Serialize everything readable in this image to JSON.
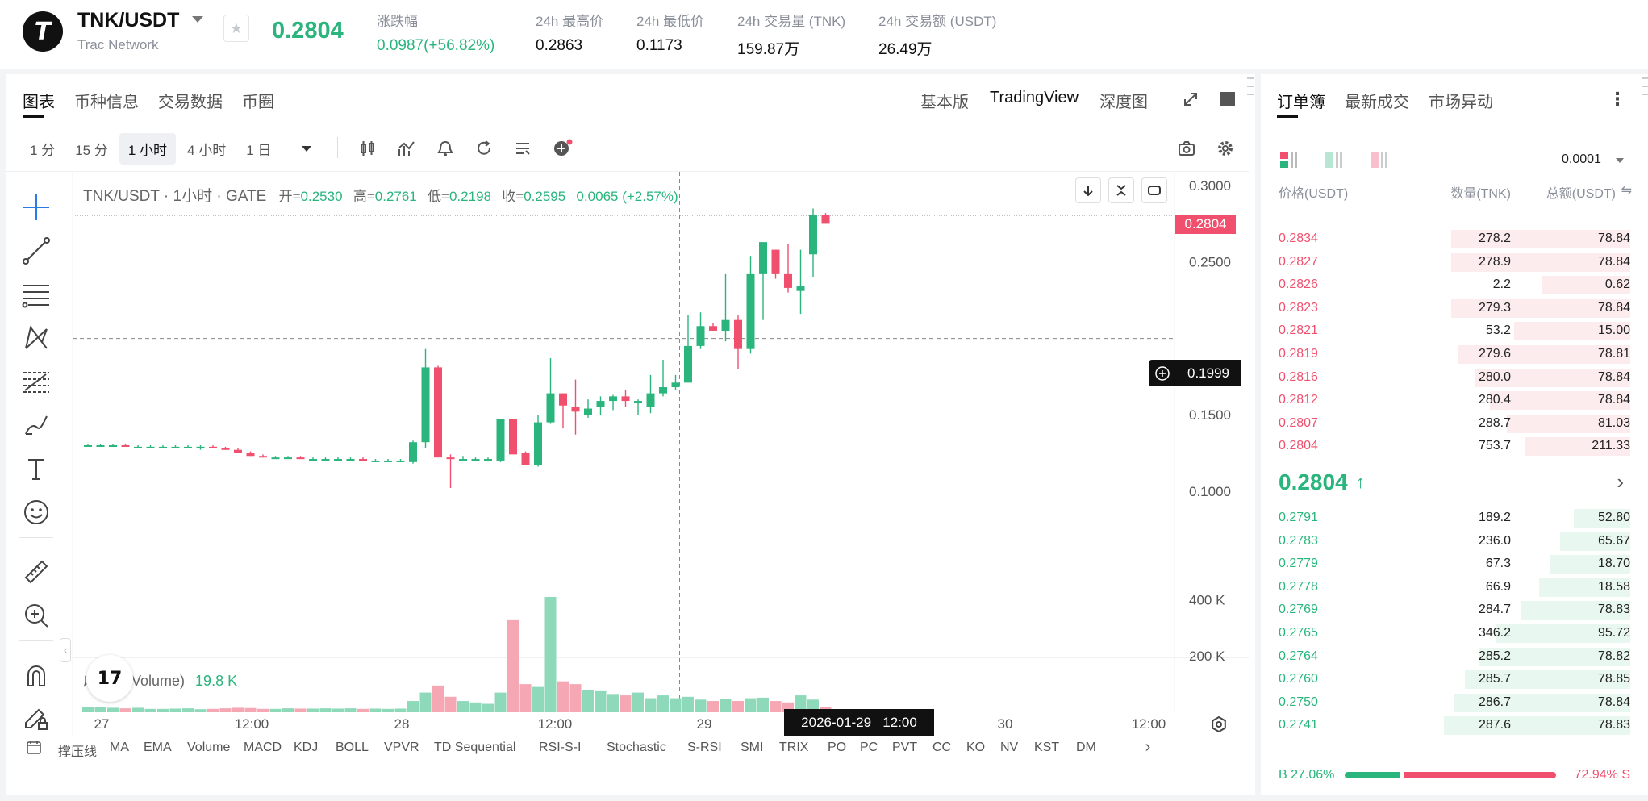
{
  "header": {
    "logo_glyph": "T",
    "pair": "TNK/USDT",
    "network": "Trac Network",
    "last_price": "0.2804",
    "stats": [
      {
        "label": "涨跌幅",
        "value": "0.0987(+56.82%)",
        "color": "#2ab57d"
      },
      {
        "label": "24h 最高价",
        "value": "0.2863",
        "color": "#111111"
      },
      {
        "label": "24h 最低价",
        "value": "0.1173",
        "color": "#111111"
      },
      {
        "label": "24h 交易量 (TNK)",
        "value": "159.87万",
        "color": "#111111"
      },
      {
        "label": "24h 交易额 (USDT)",
        "value": "26.49万",
        "color": "#111111"
      }
    ]
  },
  "chart_tabs": [
    "图表",
    "币种信息",
    "交易数据",
    "币圈"
  ],
  "chart_views": [
    "基本版",
    "TradingView",
    "深度图"
  ],
  "timeframes": [
    {
      "label": "1 分",
      "active": false
    },
    {
      "label": "15 分",
      "active": false
    },
    {
      "label": "1 小时",
      "active": true
    },
    {
      "label": "4 小时",
      "active": false
    },
    {
      "label": "1 日",
      "active": false
    }
  ],
  "legend": {
    "title": "TNK/USDT · 1小时 · GATE",
    "open_label": "开=",
    "open": "0.2530",
    "high_label": "高=",
    "high": "0.2761",
    "low_label": "低=",
    "low": "0.2198",
    "close_label": "收=",
    "close": "0.2595",
    "change": "0.0065 (+2.57%)"
  },
  "volume": {
    "label": "成交量(Volume)",
    "value": "19.8 K",
    "ticks": [
      "400 K",
      "200 K"
    ]
  },
  "price_axis": {
    "ticks": [
      "0.3000",
      "0.2500",
      "0.1500",
      "0.1000"
    ],
    "last_tag": "0.2804",
    "cursor_tag": "0.1999"
  },
  "time_axis": {
    "labels": [
      "27",
      "12:00",
      "28",
      "12:00",
      "29",
      "30",
      "12:00"
    ],
    "cursor_label": "2026-01-29   12:00"
  },
  "indicators": [
    "撑压线",
    "MA",
    "EMA",
    "Volume",
    "MACD",
    "KDJ",
    "BOLL",
    "VPVR",
    "TD Sequential",
    "RSI-S-I",
    "Stochastic",
    "S-RSI",
    "SMI",
    "TRIX",
    "PO",
    "PC",
    "PVT",
    "CC",
    "KO",
    "NV",
    "KST",
    "DM"
  ],
  "chart_data": {
    "type": "candlestick",
    "y_range": [
      0.083,
      0.309
    ],
    "candles_ohlc": [
      [
        0.13,
        0.131,
        0.129,
        0.13
      ],
      [
        0.13,
        0.131,
        0.129,
        0.13
      ],
      [
        0.13,
        0.131,
        0.129,
        0.13
      ],
      [
        0.13,
        0.131,
        0.129,
        0.129
      ],
      [
        0.129,
        0.13,
        0.128,
        0.129
      ],
      [
        0.129,
        0.13,
        0.128,
        0.129
      ],
      [
        0.129,
        0.13,
        0.128,
        0.129
      ],
      [
        0.129,
        0.13,
        0.128,
        0.129
      ],
      [
        0.129,
        0.13,
        0.128,
        0.129
      ],
      [
        0.128,
        0.13,
        0.127,
        0.129
      ],
      [
        0.129,
        0.13,
        0.128,
        0.128
      ],
      [
        0.128,
        0.129,
        0.127,
        0.127
      ],
      [
        0.127,
        0.128,
        0.125,
        0.125
      ],
      [
        0.125,
        0.126,
        0.123,
        0.123
      ],
      [
        0.123,
        0.124,
        0.122,
        0.122
      ],
      [
        0.122,
        0.123,
        0.121,
        0.122
      ],
      [
        0.122,
        0.123,
        0.121,
        0.122
      ],
      [
        0.122,
        0.123,
        0.121,
        0.121
      ],
      [
        0.121,
        0.122,
        0.121,
        0.121
      ],
      [
        0.121,
        0.122,
        0.12,
        0.121
      ],
      [
        0.121,
        0.122,
        0.12,
        0.121
      ],
      [
        0.121,
        0.122,
        0.12,
        0.121
      ],
      [
        0.121,
        0.122,
        0.12,
        0.12
      ],
      [
        0.12,
        0.121,
        0.119,
        0.12
      ],
      [
        0.12,
        0.121,
        0.119,
        0.12
      ],
      [
        0.12,
        0.121,
        0.119,
        0.12
      ],
      [
        0.119,
        0.133,
        0.118,
        0.132
      ],
      [
        0.132,
        0.193,
        0.128,
        0.181
      ],
      [
        0.181,
        0.182,
        0.122,
        0.122
      ],
      [
        0.122,
        0.124,
        0.102,
        0.121
      ],
      [
        0.121,
        0.123,
        0.12,
        0.121
      ],
      [
        0.121,
        0.122,
        0.12,
        0.121
      ],
      [
        0.121,
        0.122,
        0.12,
        0.121
      ],
      [
        0.12,
        0.135,
        0.119,
        0.147
      ],
      [
        0.147,
        0.147,
        0.125,
        0.124
      ],
      [
        0.125,
        0.126,
        0.117,
        0.117
      ],
      [
        0.117,
        0.15,
        0.116,
        0.145
      ],
      [
        0.145,
        0.187,
        0.144,
        0.164
      ],
      [
        0.164,
        0.164,
        0.141,
        0.156
      ],
      [
        0.155,
        0.173,
        0.137,
        0.152
      ],
      [
        0.15,
        0.16,
        0.148,
        0.154
      ],
      [
        0.155,
        0.162,
        0.15,
        0.159
      ],
      [
        0.159,
        0.163,
        0.153,
        0.162
      ],
      [
        0.162,
        0.166,
        0.155,
        0.159
      ],
      [
        0.159,
        0.16,
        0.15,
        0.159
      ],
      [
        0.155,
        0.176,
        0.151,
        0.164
      ],
      [
        0.164,
        0.186,
        0.162,
        0.168
      ],
      [
        0.168,
        0.176,
        0.166,
        0.171
      ],
      [
        0.171,
        0.215,
        0.171,
        0.195
      ],
      [
        0.195,
        0.217,
        0.193,
        0.208
      ],
      [
        0.208,
        0.21,
        0.205,
        0.205
      ],
      [
        0.205,
        0.242,
        0.198,
        0.212
      ],
      [
        0.212,
        0.215,
        0.18,
        0.193
      ],
      [
        0.193,
        0.254,
        0.19,
        0.242
      ],
      [
        0.242,
        0.26,
        0.212,
        0.263
      ],
      [
        0.258,
        0.258,
        0.239,
        0.242
      ],
      [
        0.242,
        0.262,
        0.23,
        0.233
      ],
      [
        0.231,
        0.258,
        0.216,
        0.234
      ],
      [
        0.255,
        0.285,
        0.24,
        0.281
      ],
      [
        0.281,
        0.282,
        0.275,
        0.275
      ]
    ],
    "volume_k": [
      20,
      18,
      16,
      14,
      16,
      12,
      12,
      13,
      14,
      11,
      12,
      14,
      16,
      15,
      12,
      12,
      14,
      13,
      13,
      14,
      13,
      14,
      12,
      13,
      12,
      13,
      40,
      70,
      95,
      55,
      40,
      35,
      30,
      70,
      330,
      100,
      90,
      410,
      110,
      100,
      80,
      75,
      65,
      60,
      70,
      50,
      60,
      50,
      55,
      45,
      40,
      48,
      40,
      50,
      52,
      40,
      35,
      60,
      45,
      18
    ]
  },
  "orderbook": {
    "tabs": [
      "订单簿",
      "最新成交",
      "市场异动"
    ],
    "precision": "0.0001",
    "headers": {
      "price": "价格(USDT)",
      "qty": "数量(TNK)",
      "total": "总额(USDT)"
    },
    "asks": [
      {
        "price": "0.2834",
        "qty": "278.2",
        "total": "78.84",
        "depth": 0.51
      },
      {
        "price": "0.2827",
        "qty": "278.9",
        "total": "78.84",
        "depth": 0.51
      },
      {
        "price": "0.2826",
        "qty": "2.2",
        "total": "0.62",
        "depth": 0.25
      },
      {
        "price": "0.2823",
        "qty": "279.3",
        "total": "78.84",
        "depth": 0.51
      },
      {
        "price": "0.2821",
        "qty": "53.2",
        "total": "15.00",
        "depth": 0.33
      },
      {
        "price": "0.2819",
        "qty": "279.6",
        "total": "78.81",
        "depth": 0.49
      },
      {
        "price": "0.2816",
        "qty": "280.0",
        "total": "78.84",
        "depth": 0.44
      },
      {
        "price": "0.2812",
        "qty": "280.4",
        "total": "78.84",
        "depth": 0.4
      },
      {
        "price": "0.2807",
        "qty": "288.7",
        "total": "81.03",
        "depth": 0.35
      },
      {
        "price": "0.2804",
        "qty": "753.7",
        "total": "211.33",
        "depth": 0.3
      }
    ],
    "mid_price": "0.2804",
    "bids": [
      {
        "price": "0.2791",
        "qty": "189.2",
        "total": "52.80",
        "depth": 0.16
      },
      {
        "price": "0.2783",
        "qty": "236.0",
        "total": "65.67",
        "depth": 0.2
      },
      {
        "price": "0.2779",
        "qty": "67.3",
        "total": "18.70",
        "depth": 0.23
      },
      {
        "price": "0.2778",
        "qty": "66.9",
        "total": "18.58",
        "depth": 0.26
      },
      {
        "price": "0.2769",
        "qty": "284.7",
        "total": "78.83",
        "depth": 0.31
      },
      {
        "price": "0.2765",
        "qty": "346.2",
        "total": "95.72",
        "depth": 0.38
      },
      {
        "price": "0.2764",
        "qty": "285.2",
        "total": "78.82",
        "depth": 0.43
      },
      {
        "price": "0.2760",
        "qty": "285.7",
        "total": "78.85",
        "depth": 0.47
      },
      {
        "price": "0.2750",
        "qty": "286.7",
        "total": "78.84",
        "depth": 0.5
      },
      {
        "price": "0.2741",
        "qty": "287.6",
        "total": "78.83",
        "depth": 0.53
      }
    ],
    "buy_ratio": "B 27.06%",
    "sell_ratio": "72.94% S",
    "buy_fraction": 0.2706
  },
  "colors": {
    "up": "#2ab57d",
    "down": "#f0506e",
    "up_vol": "#8fd9bb",
    "down_vol": "#f6a7b4"
  }
}
